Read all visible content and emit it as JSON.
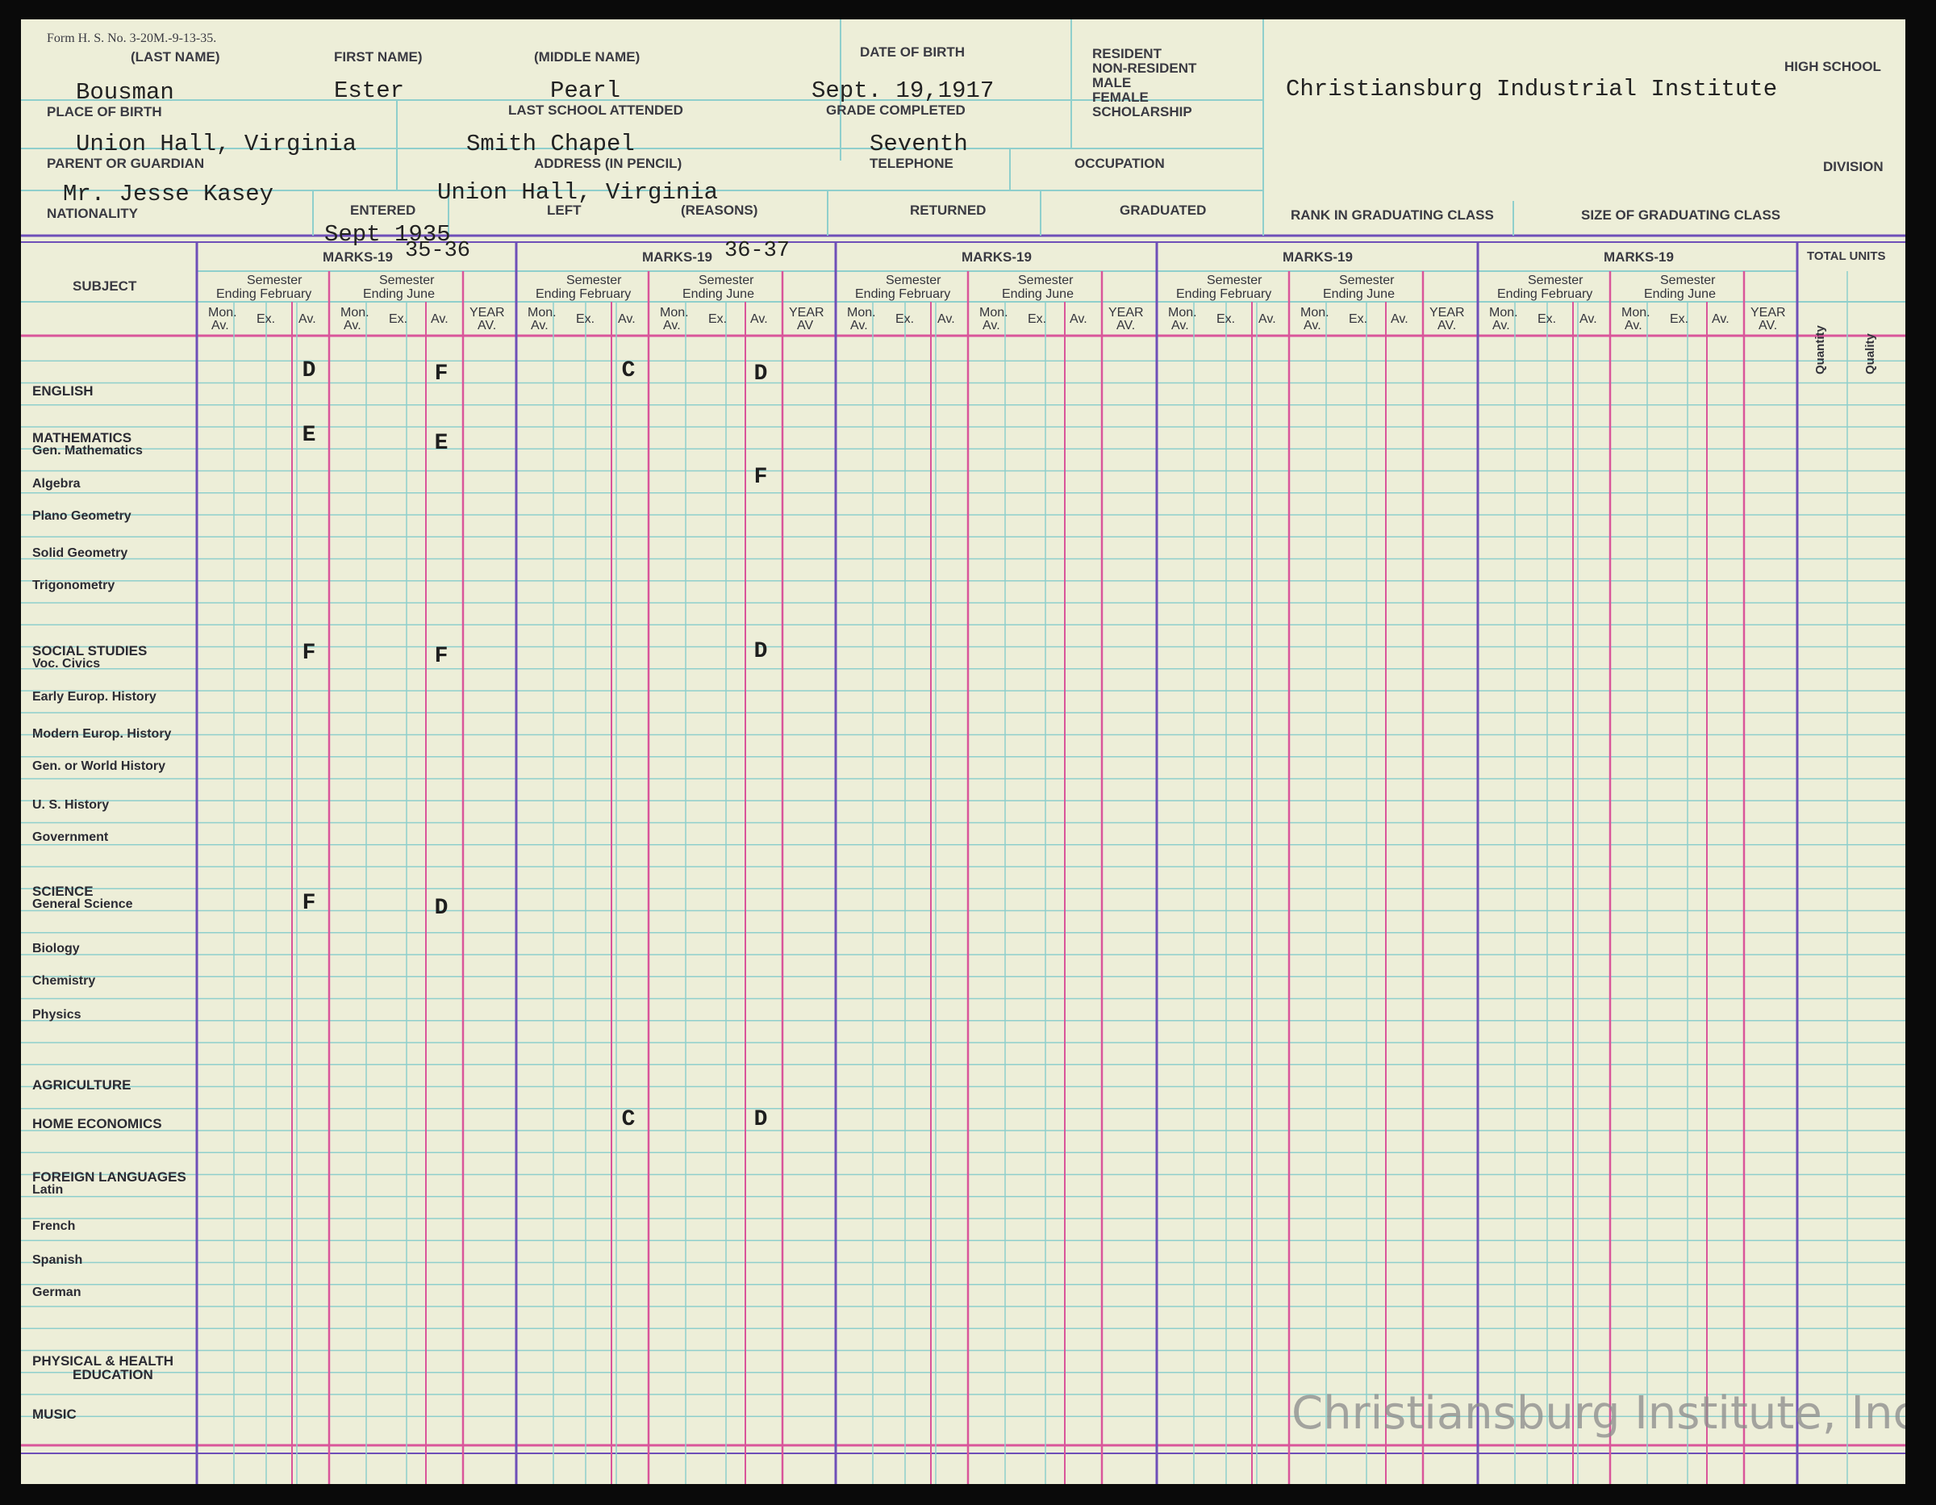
{
  "form_number": "Form H. S. No. 3-20M.-9-13-35.",
  "header_labels": {
    "last_name": "(LAST NAME)",
    "first_name": "FIRST NAME)",
    "middle_name": "(MIDDLE NAME)",
    "date_of_birth": "DATE OF BIRTH",
    "resident": "RESIDENT",
    "non_resident": "NON-RESIDENT",
    "male": "MALE",
    "female": "FEMALE",
    "scholarship": "SCHOLARSHIP",
    "high_school": "HIGH SCHOOL",
    "place_of_birth": "PLACE OF BIRTH",
    "last_school": "LAST SCHOOL ATTENDED",
    "grade_completed": "GRADE COMPLETED",
    "parent": "PARENT OR GUARDIAN",
    "address": "ADDRESS (IN PENCIL)",
    "telephone": "TELEPHONE",
    "occupation": "OCCUPATION",
    "division": "DIVISION",
    "nationality": "NATIONALITY",
    "entered": "ENTERED",
    "left": "LEFT",
    "reasons": "(REASONS)",
    "returned": "RETURNED",
    "graduated": "GRADUATED",
    "rank": "RANK IN GRADUATING CLASS",
    "size": "SIZE OF GRADUATING CLASS"
  },
  "student": {
    "last_name": "Bousman",
    "first_name": "Ester",
    "middle_name": "Pearl",
    "date_of_birth": "Sept. 19,1917",
    "high_school": "Christiansburg Industrial Institute",
    "place_of_birth": "Union Hall, Virginia",
    "last_school": "Smith Chapel",
    "grade_completed": "Seventh",
    "parent": "Mr. Jesse Kasey",
    "address": "Union Hall, Virginia",
    "entered": "Sept 1935"
  },
  "table_labels": {
    "subject": "SUBJECT",
    "marks": "MARKS-19",
    "semester": "Semester",
    "ending_february": "Ending February",
    "ending_june": "Ending June",
    "mon": "Mon.",
    "av_dot": "Av.",
    "ex": "Ex.",
    "year": "YEAR",
    "year_av": "AV.",
    "year_av_b": "AV",
    "total_units": "TOTAL UNITS",
    "quantity": "Quantity",
    "quality": "Quality"
  },
  "years": [
    "35-36",
    "36-37",
    "",
    "",
    ""
  ],
  "subjects": [
    {
      "label": "ENGLISH",
      "major": true
    },
    {
      "label": "MATHEMATICS",
      "major": true
    },
    {
      "label": "Gen. Mathematics",
      "major": false
    },
    {
      "label": "Algebra",
      "major": false
    },
    {
      "label": "Plano Geometry",
      "major": false
    },
    {
      "label": "Solid Geometry",
      "major": false
    },
    {
      "label": "Trigonometry",
      "major": false
    },
    {
      "label": "SOCIAL STUDIES",
      "major": true
    },
    {
      "label": "Voc. Civics",
      "major": false
    },
    {
      "label": "Early Europ. History",
      "major": false
    },
    {
      "label": "Modern Europ. History",
      "major": false
    },
    {
      "label": "Gen. or World History",
      "major": false
    },
    {
      "label": "U. S. History",
      "major": false
    },
    {
      "label": "Government",
      "major": false
    },
    {
      "label": "SCIENCE",
      "major": true
    },
    {
      "label": "General Science",
      "major": false
    },
    {
      "label": "Biology",
      "major": false
    },
    {
      "label": "Chemistry",
      "major": false
    },
    {
      "label": "Physics",
      "major": false
    },
    {
      "label": "AGRICULTURE",
      "major": true
    },
    {
      "label": "HOME ECONOMICS",
      "major": true
    },
    {
      "label": "FOREIGN LANGUAGES",
      "major": true
    },
    {
      "label": "Latin",
      "major": false
    },
    {
      "label": "French",
      "major": false
    },
    {
      "label": "Spanish",
      "major": false
    },
    {
      "label": "German",
      "major": false
    },
    {
      "label": "PHYSICAL & HEALTH",
      "major": true
    },
    {
      "label": "EDUCATION",
      "major": true
    },
    {
      "label": "MUSIC",
      "major": true
    }
  ],
  "grades": [
    {
      "subject": "ENGLISH",
      "year": "35-36",
      "semester": "February",
      "value": "D"
    },
    {
      "subject": "ENGLISH",
      "year": "35-36",
      "semester": "June",
      "value": "F"
    },
    {
      "subject": "ENGLISH",
      "year": "36-37",
      "semester": "February",
      "value": "C"
    },
    {
      "subject": "ENGLISH",
      "year": "36-37",
      "semester": "June",
      "value": "D"
    },
    {
      "subject": "Gen. Mathematics",
      "year": "35-36",
      "semester": "February",
      "value": "E"
    },
    {
      "subject": "Gen. Mathematics",
      "year": "35-36",
      "semester": "June",
      "value": "E"
    },
    {
      "subject": "Algebra",
      "year": "36-37",
      "semester": "June",
      "value": "F"
    },
    {
      "subject": "Voc. Civics",
      "year": "35-36",
      "semester": "February",
      "value": "F"
    },
    {
      "subject": "Voc. Civics",
      "year": "35-36",
      "semester": "June",
      "value": "F"
    },
    {
      "subject": "Voc. Civics",
      "year": "36-37",
      "semester": "June",
      "value": "D"
    },
    {
      "subject": "General Science",
      "year": "35-36",
      "semester": "February",
      "value": "F"
    },
    {
      "subject": "General Science",
      "year": "35-36",
      "semester": "June",
      "value": "D"
    },
    {
      "subject": "HOME ECONOMICS",
      "year": "36-37",
      "semester": "February",
      "value": "C"
    },
    {
      "subject": "HOME ECONOMICS",
      "year": "36-37",
      "semester": "June",
      "value": "D"
    }
  ],
  "watermark": "Christiansburg Institute, Inc",
  "colors": {
    "paper": "#edeed8",
    "grid": "#8fcfcc",
    "pink_rule": "#d9559a",
    "purple_rule": "#6e4fb8",
    "ink": "#222222"
  }
}
